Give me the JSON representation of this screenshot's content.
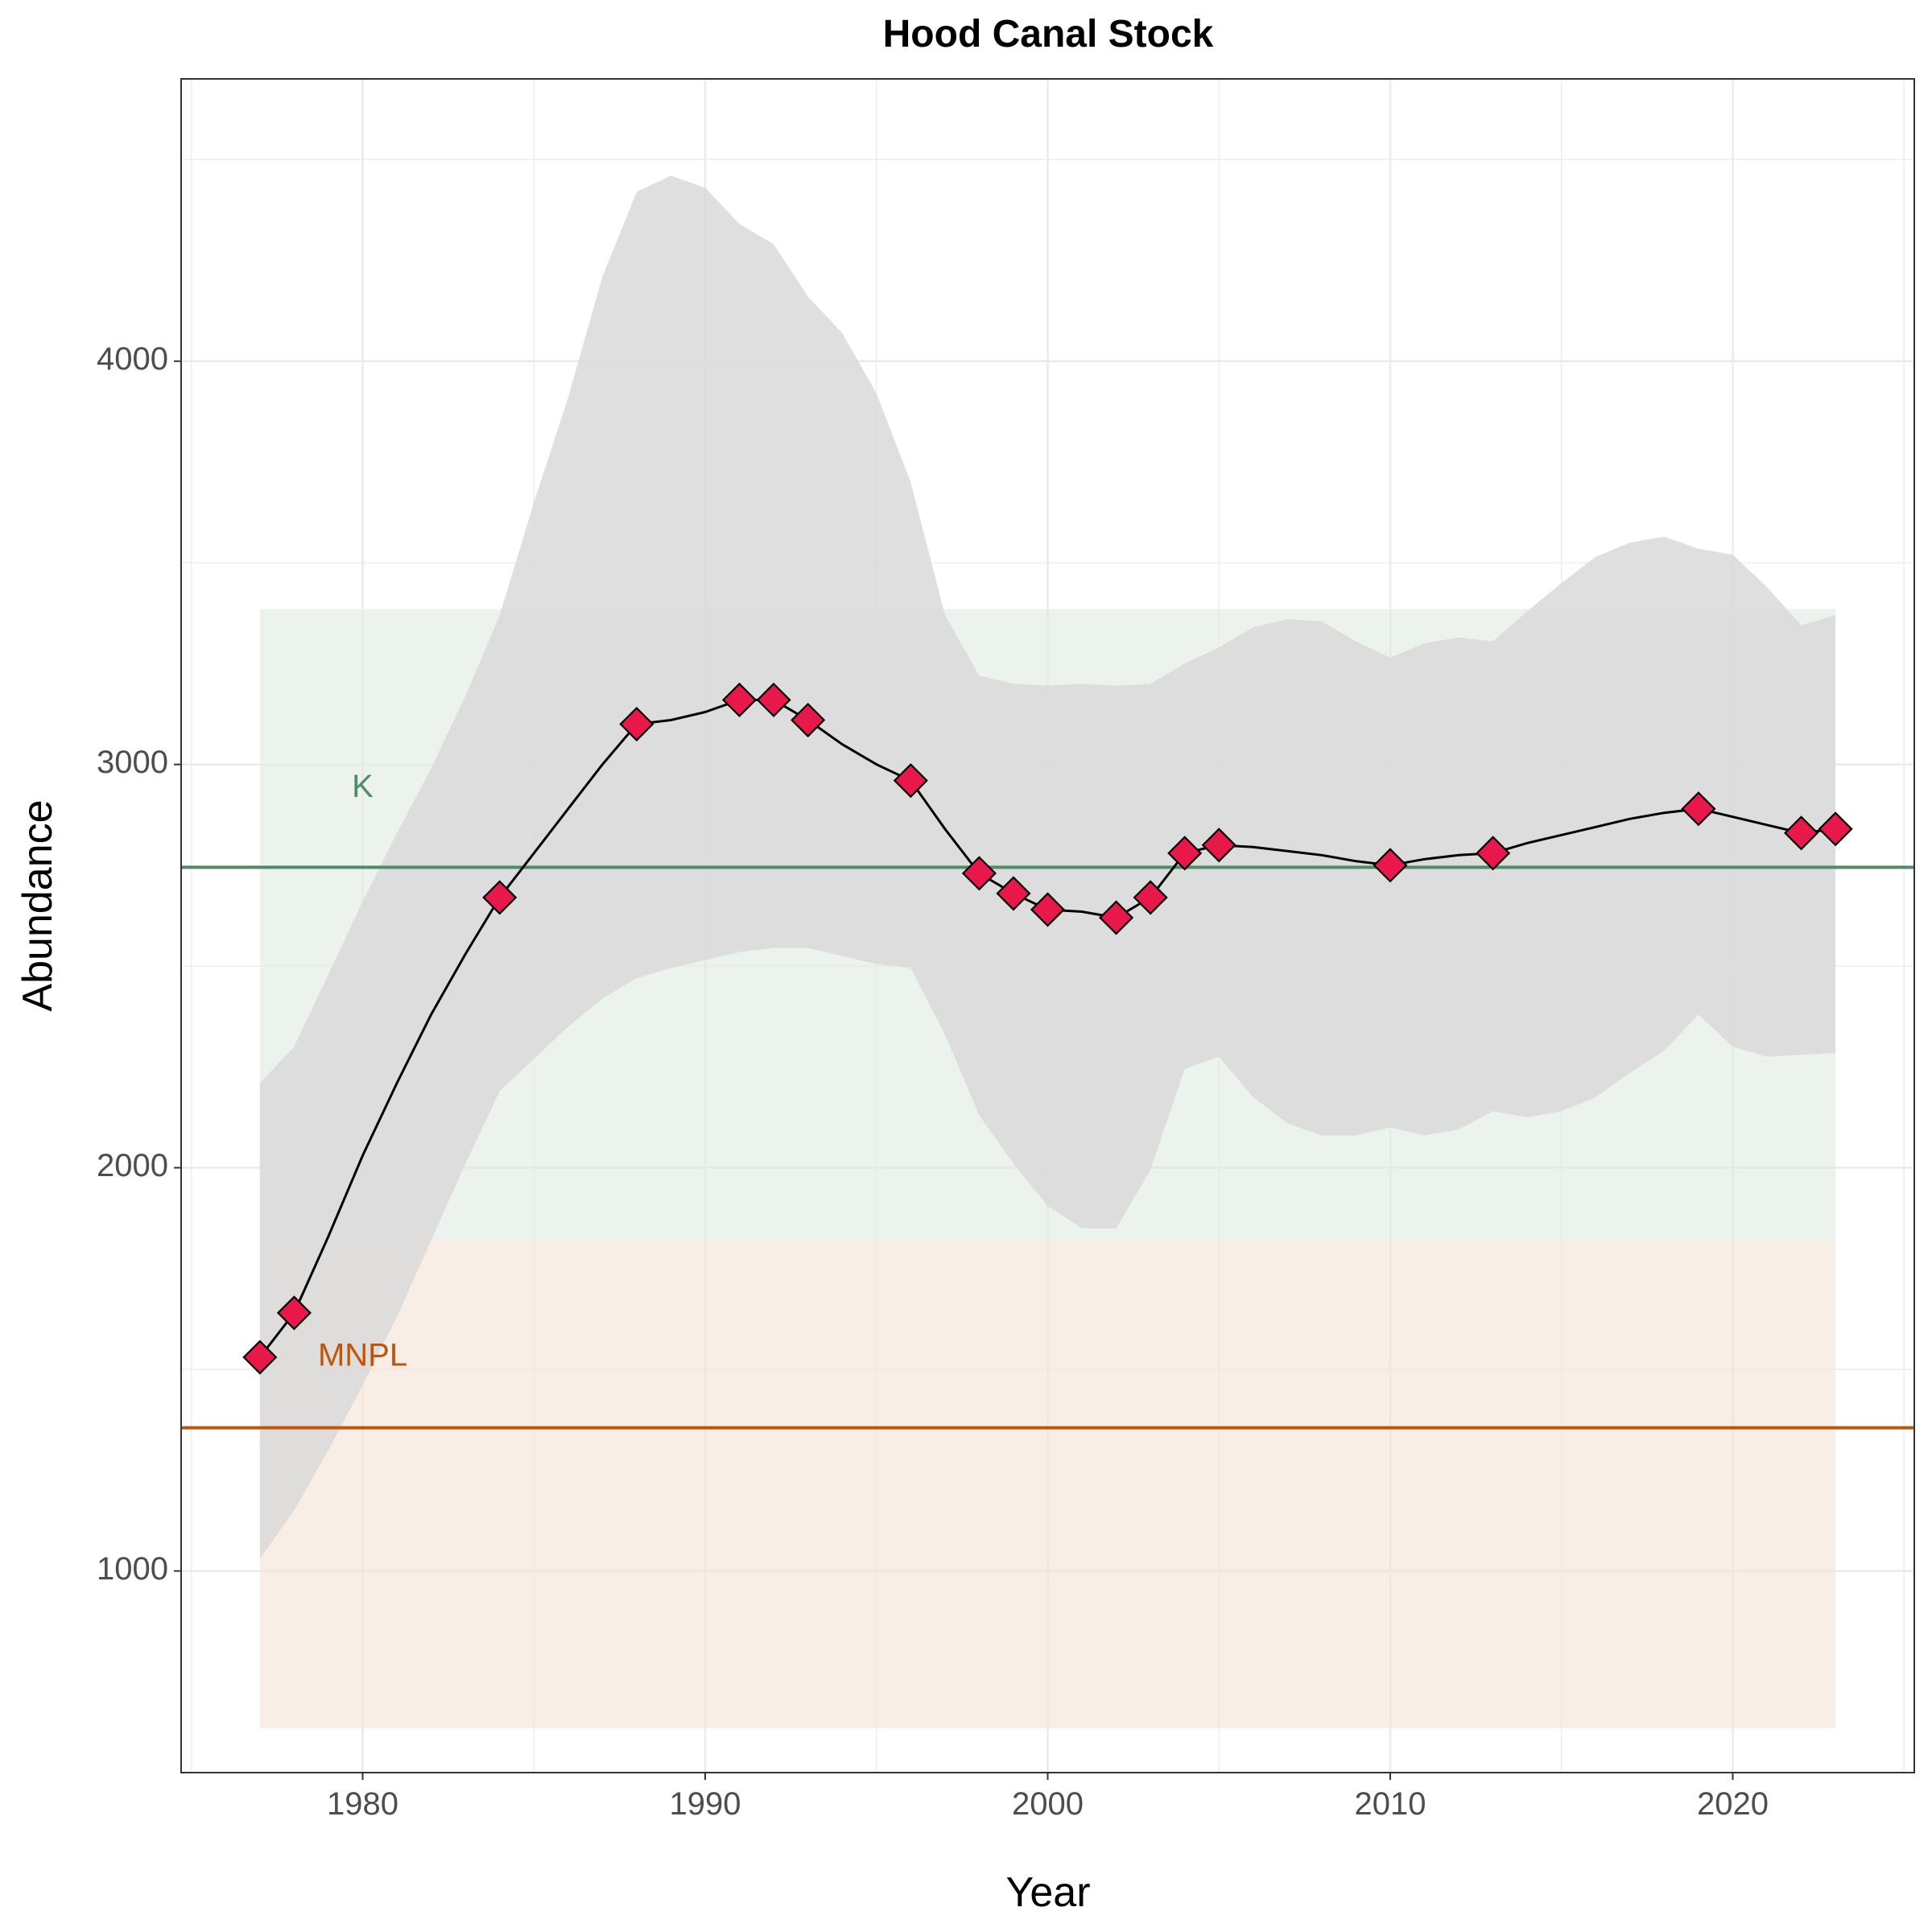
{
  "chart_data": {
    "type": "line",
    "title": "Hood Canal Stock",
    "xlabel": "Year",
    "ylabel": "Abundance",
    "xlim": [
      1974.7,
      2025.3
    ],
    "ylim": [
      500,
      4700
    ],
    "x_ticks": [
      1980,
      1990,
      2000,
      2010,
      2020
    ],
    "y_ticks": [
      1000,
      2000,
      3000,
      4000
    ],
    "grid": true,
    "series": [
      {
        "color": "#000000",
        "marker_fill": "#e8184a",
        "points": [
          {
            "x": 1977,
            "y": 1530
          },
          {
            "x": 1978,
            "y": 1640
          },
          {
            "x": 1984,
            "y": 2670
          },
          {
            "x": 1988,
            "y": 3100
          },
          {
            "x": 1991,
            "y": 3160
          },
          {
            "x": 1992,
            "y": 3160
          },
          {
            "x": 1993,
            "y": 3110
          },
          {
            "x": 1996,
            "y": 2960
          },
          {
            "x": 1998,
            "y": 2730
          },
          {
            "x": 1999,
            "y": 2680
          },
          {
            "x": 2000,
            "y": 2640
          },
          {
            "x": 2002,
            "y": 2620
          },
          {
            "x": 2003,
            "y": 2670
          },
          {
            "x": 2004,
            "y": 2780
          },
          {
            "x": 2005,
            "y": 2800
          },
          {
            "x": 2010,
            "y": 2750
          },
          {
            "x": 2013,
            "y": 2780
          },
          {
            "x": 2019,
            "y": 2890
          },
          {
            "x": 2022,
            "y": 2830
          },
          {
            "x": 2023,
            "y": 2840
          }
        ],
        "line": [
          [
            1977,
            1530
          ],
          [
            1978,
            1640
          ],
          [
            1979,
            1830
          ],
          [
            1980,
            2030
          ],
          [
            1981,
            2210
          ],
          [
            1982,
            2380
          ],
          [
            1983,
            2530
          ],
          [
            1984,
            2670
          ],
          [
            1985,
            2780
          ],
          [
            1986,
            2890
          ],
          [
            1987,
            3000
          ],
          [
            1988,
            3100
          ],
          [
            1989,
            3110
          ],
          [
            1990,
            3130
          ],
          [
            1991,
            3160
          ],
          [
            1992,
            3160
          ],
          [
            1993,
            3110
          ],
          [
            1994,
            3050
          ],
          [
            1995,
            3000
          ],
          [
            1996,
            2960
          ],
          [
            1997,
            2840
          ],
          [
            1998,
            2730
          ],
          [
            1999,
            2680
          ],
          [
            2000,
            2640
          ],
          [
            2001,
            2635
          ],
          [
            2002,
            2620
          ],
          [
            2003,
            2670
          ],
          [
            2004,
            2780
          ],
          [
            2005,
            2800
          ],
          [
            2006,
            2795
          ],
          [
            2007,
            2785
          ],
          [
            2008,
            2775
          ],
          [
            2009,
            2760
          ],
          [
            2010,
            2750
          ],
          [
            2011,
            2765
          ],
          [
            2012,
            2775
          ],
          [
            2013,
            2780
          ],
          [
            2014,
            2805
          ],
          [
            2015,
            2825
          ],
          [
            2016,
            2845
          ],
          [
            2017,
            2865
          ],
          [
            2018,
            2880
          ],
          [
            2019,
            2890
          ],
          [
            2020,
            2870
          ],
          [
            2021,
            2850
          ],
          [
            2022,
            2830
          ],
          [
            2023,
            2840
          ]
        ]
      }
    ],
    "confidence_band": {
      "color": "#d9d9d9",
      "x": [
        1977,
        1978,
        1979,
        1980,
        1981,
        1982,
        1983,
        1984,
        1985,
        1986,
        1987,
        1988,
        1989,
        1990,
        1991,
        1992,
        1993,
        1994,
        1995,
        1996,
        1997,
        1998,
        1999,
        2000,
        2001,
        2002,
        2003,
        2004,
        2005,
        2006,
        2007,
        2008,
        2009,
        2010,
        2011,
        2012,
        2013,
        2014,
        2015,
        2016,
        2017,
        2018,
        2019,
        2020,
        2021,
        2022,
        2023
      ],
      "upper": [
        2210,
        2300,
        2480,
        2660,
        2830,
        2990,
        3170,
        3370,
        3650,
        3910,
        4210,
        4420,
        4460,
        4430,
        4340,
        4290,
        4160,
        4070,
        3920,
        3700,
        3370,
        3220,
        3200,
        3195,
        3200,
        3195,
        3200,
        3250,
        3290,
        3340,
        3360,
        3355,
        3305,
        3265,
        3300,
        3315,
        3305,
        3380,
        3450,
        3515,
        3550,
        3565,
        3535,
        3520,
        3440,
        3345,
        3370
      ],
      "lower": [
        1030,
        1150,
        1300,
        1460,
        1630,
        1820,
        2010,
        2190,
        2270,
        2350,
        2420,
        2470,
        2495,
        2515,
        2535,
        2545,
        2545,
        2525,
        2505,
        2495,
        2330,
        2130,
        2010,
        1905,
        1850,
        1850,
        1995,
        2245,
        2275,
        2175,
        2110,
        2080,
        2080,
        2100,
        2080,
        2095,
        2140,
        2125,
        2140,
        2175,
        2235,
        2290,
        2380,
        2300,
        2275,
        2280,
        2285
      ]
    },
    "ranges": [
      {
        "label": "K",
        "color": "#4e8b6b",
        "fill": "#dfeae0",
        "xmin": 1977,
        "xmax": 2023,
        "lower": 1820,
        "upper": 3385,
        "line_y": 2745
      },
      {
        "label": "MNPL",
        "color": "#c0550a",
        "fill": "#f5e3d4",
        "xmin": 1977,
        "xmax": 2023,
        "lower": 610,
        "upper": 1820,
        "line_y": 1355
      }
    ]
  }
}
